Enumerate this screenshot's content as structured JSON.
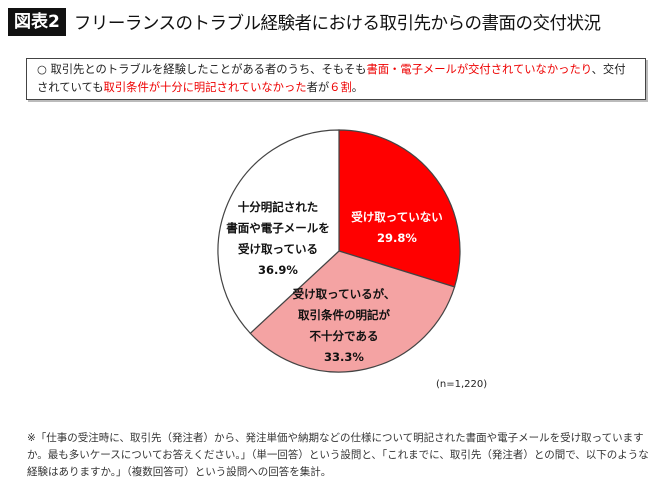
{
  "header": {
    "badge": "図表2",
    "title": "フリーランスのトラブル経験者における取引先からの書面の交付状況"
  },
  "summary": {
    "bullet": "○",
    "p1": "取引先とのトラブルを経験したことがある者のうち、そもそも",
    "r1": "書面・電子メールが交付されていなかったり",
    "p2": "、交付されていても",
    "r2": "取引条件が十分に明記されていなかった",
    "p3": "者が",
    "r3": "６割",
    "p4": "。"
  },
  "chart_data": {
    "type": "pie",
    "start": "12 o'clock, clockwise",
    "slices": [
      {
        "label": "受け取っていない",
        "value": 29.8,
        "value_label": "29.8%",
        "color": "#ff0000"
      },
      {
        "label": "受け取っているが、取引条件の明記が不十分である",
        "value": 33.3,
        "value_label": "33.3%",
        "color": "#f4a3a3"
      },
      {
        "label": "十分明記された書面や電子メールを受け取っている",
        "value": 36.9,
        "value_label": "36.9%",
        "color": "#ffffff"
      }
    ],
    "label_lines": [
      [
        "受け取っていない"
      ],
      [
        "受け取っているが、",
        "取引条件の明記が",
        "不十分である"
      ],
      [
        "十分明記された",
        "書面や電子メールを",
        "受け取っている"
      ]
    ],
    "n": "(n=1,220)"
  },
  "footnote": "※「仕事の受注時に、取引先（発注者）から、発注単価や納期などの仕様について明記された書面や電子メールを受け取っていますか。最も多いケースについてお答えください。」（単一回答）という設問と、「これまでに、取引先（発注者）との間で、以下のような経験はありますか。」（複数回答可）という設問への回答を集計。"
}
